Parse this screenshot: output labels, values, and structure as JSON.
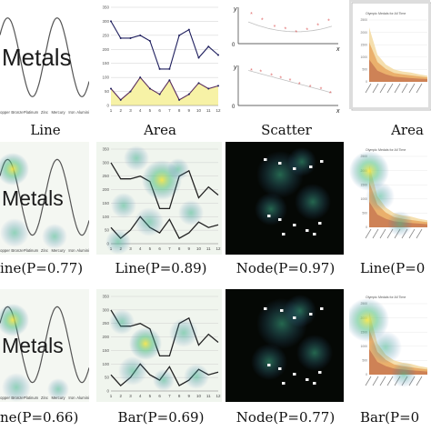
{
  "columns": [
    "Line",
    "Area",
    "Scatter",
    "Area"
  ],
  "rows": [
    {
      "captions": [
        "ine(P=0.77)",
        "Line(P=0.89)",
        "Node(P=0.97)",
        "Line(P=0"
      ]
    },
    {
      "captions": [
        "ne(P=0.66)",
        "Bar(P=0.69)",
        "Node(P=0.77)",
        "Bar(P=0"
      ]
    }
  ],
  "metals_word": "Metals",
  "colors": {
    "navy": "#1f1f5e",
    "area_fill": "#f7f2a6",
    "scatter_point": "#e06a6a",
    "line_black": "#222222"
  },
  "chart_data": [
    {
      "type": "line",
      "panel": "metals-line",
      "title": "",
      "categories": [
        "Copper",
        "Bronze",
        "Platinum",
        "Zinc",
        "Mercury",
        "Iron",
        "Aluminium"
      ],
      "series": [
        {
          "values": [
            0.5,
            1.0,
            0.2,
            -0.9,
            0.3,
            0.95,
            -0.6
          ]
        }
      ],
      "annotations": [
        "Metals"
      ]
    },
    {
      "type": "area",
      "panel": "area-line",
      "title": "",
      "x": [
        1,
        2,
        3,
        4,
        5,
        6,
        7,
        8,
        9,
        10,
        11,
        12
      ],
      "ytick_labels": [
        "0",
        "50",
        "100",
        "150",
        "200",
        "250",
        "300",
        "350"
      ],
      "ylim": [
        0,
        350
      ],
      "series": [
        {
          "values": [
            300,
            240,
            240,
            250,
            230,
            130,
            130,
            250,
            270,
            170,
            210,
            180
          ]
        },
        {
          "values": [
            60,
            20,
            50,
            100,
            60,
            40,
            90,
            20,
            40,
            80,
            60,
            70
          ]
        }
      ]
    },
    {
      "type": "scatter",
      "panel": "scatter-top",
      "title": "",
      "ylabel": "y",
      "xlabel": "x",
      "origin_label": "0",
      "series": [
        {
          "x": [
            0.5,
            1.2,
            2.0,
            2.7,
            3.4,
            4.1,
            4.8,
            5.5
          ],
          "y": [
            2.6,
            2.1,
            1.5,
            1.3,
            1.0,
            1.2,
            1.6,
            2.0
          ]
        }
      ]
    },
    {
      "type": "scatter",
      "panel": "scatter-bottom",
      "title": "",
      "ylabel": "y",
      "xlabel": "x",
      "origin_label": "0",
      "series": [
        {
          "x": [
            0.5,
            1.1,
            1.8,
            2.4,
            3.0,
            3.6,
            4.3,
            5.0,
            5.6
          ],
          "y": [
            2.8,
            2.7,
            2.4,
            2.2,
            2.0,
            1.7,
            1.5,
            1.3,
            1.0
          ]
        }
      ]
    },
    {
      "type": "area",
      "panel": "olympic-area",
      "title": "Olympic Medals for All Time",
      "ytick_labels": [
        "0",
        "500",
        "1000",
        "1500",
        "2000",
        "2500"
      ],
      "ylim": [
        0,
        2500
      ],
      "series": [
        {
          "values": [
            2200,
            1100,
            700,
            500,
            420,
            380,
            300,
            250
          ]
        },
        {
          "values": [
            1600,
            800,
            520,
            360,
            300,
            260,
            220,
            180
          ]
        },
        {
          "values": [
            900,
            450,
            300,
            210,
            180,
            150,
            130,
            110
          ]
        }
      ]
    }
  ]
}
